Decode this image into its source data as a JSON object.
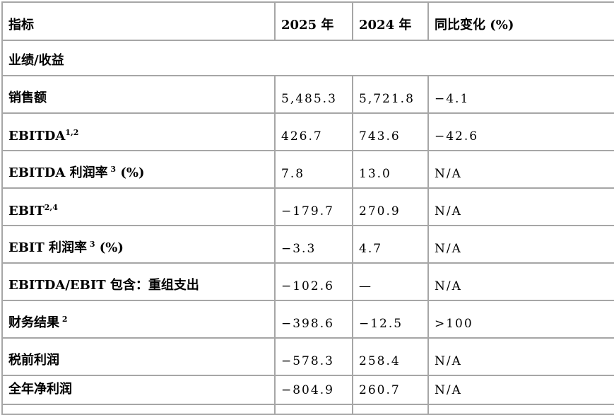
{
  "page": {
    "background_color": "#ffffff",
    "border_color": "#a6a6a6",
    "text_color": "#000000"
  },
  "table": {
    "rows": [
      {
        "type": "header",
        "cells": [
          {
            "text": "指标"
          },
          {
            "text": "2025 年"
          },
          {
            "text": "2024 年"
          },
          {
            "text": "同比变化 (%)"
          }
        ]
      },
      {
        "type": "section",
        "cells": [
          {
            "text": "业绩/收益",
            "colspan": 4
          }
        ]
      },
      {
        "type": "data",
        "cells": [
          {
            "text": "销售额"
          },
          {
            "text": "5,485.3"
          },
          {
            "text": "5,721.8"
          },
          {
            "text": "−4.1"
          }
        ]
      },
      {
        "type": "data",
        "cells": [
          {
            "text": "EBITDA",
            "sup": "1,2"
          },
          {
            "text": "426.7"
          },
          {
            "text": "743.6"
          },
          {
            "text": "−42.6"
          }
        ]
      },
      {
        "type": "data",
        "cells": [
          {
            "text": "EBITDA 利润率",
            "sup": " 3",
            "suffix": " (%)"
          },
          {
            "text": "7.8"
          },
          {
            "text": "13.0"
          },
          {
            "text": "N/A"
          }
        ]
      },
      {
        "type": "data",
        "cells": [
          {
            "text": "EBIT",
            "sup": "2,4"
          },
          {
            "text": "−179.7"
          },
          {
            "text": "270.9"
          },
          {
            "text": "N/A"
          }
        ]
      },
      {
        "type": "data",
        "cells": [
          {
            "text": "EBIT 利润率",
            "sup": " 3",
            "suffix": " (%)"
          },
          {
            "text": "−3.3"
          },
          {
            "text": "4.7"
          },
          {
            "text": "N/A"
          }
        ]
      },
      {
        "type": "data",
        "cells": [
          {
            "text": "EBITDA/EBIT 包含：重组支出"
          },
          {
            "text": "−102.6"
          },
          {
            "text": "—"
          },
          {
            "text": "N/A"
          }
        ]
      },
      {
        "type": "data",
        "cells": [
          {
            "text": "财务结果",
            "sup": " 2"
          },
          {
            "text": "−398.6"
          },
          {
            "text": "−12.5"
          },
          {
            "text": ">100"
          }
        ]
      },
      {
        "type": "data",
        "cells": [
          {
            "text": "税前利润"
          },
          {
            "text": "−578.3"
          },
          {
            "text": "258.4"
          },
          {
            "text": "N/A"
          }
        ]
      },
      {
        "type": "data",
        "cells": [
          {
            "text": "全年净利润"
          },
          {
            "text": "−804.9"
          },
          {
            "text": "260.7"
          },
          {
            "text": "N/A"
          }
        ]
      }
    ]
  }
}
